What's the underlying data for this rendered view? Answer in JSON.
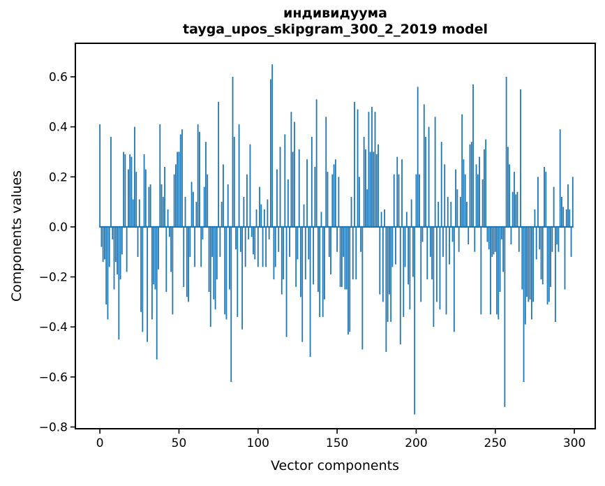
{
  "figure": {
    "title_line1": "индивидуума",
    "title_line2": "tayga_upos_skipgram_300_2_2019 model"
  },
  "chart_data": {
    "type": "bar",
    "title": "индивидуума tayga_upos_skipgram_300_2_2019 model",
    "xlabel": "Vector components",
    "ylabel": "Components values",
    "x_start": 0,
    "x_end": 299,
    "bar_color": "#1f77b4",
    "axis_color": "#000000",
    "background_color": "#ffffff",
    "grid": false,
    "legend": null,
    "xticks": [
      0,
      50,
      100,
      150,
      200,
      250,
      300
    ],
    "yticks": [
      0.6,
      0.4,
      0.2,
      0.0,
      -0.2,
      -0.4,
      -0.6,
      -0.8
    ],
    "xlim": [
      -15.5,
      313.2
    ],
    "ylim": [
      -0.807,
      0.734
    ],
    "values": [
      0.41,
      -0.08,
      -0.14,
      -0.13,
      -0.31,
      -0.37,
      -0.16,
      0.36,
      -0.05,
      -0.25,
      -0.14,
      -0.19,
      -0.45,
      -0.21,
      -0.11,
      0.3,
      0.29,
      -0.18,
      0.23,
      0.29,
      0.28,
      0.11,
      0.4,
      0.22,
      -0.12,
      0.11,
      -0.34,
      -0.42,
      0.29,
      0.23,
      -0.46,
      0.16,
      0.17,
      -0.37,
      -0.23,
      -0.25,
      -0.53,
      -0.17,
      0.41,
      0.17,
      0.12,
      0.24,
      -0.26,
      0.07,
      -0.04,
      -0.18,
      -0.35,
      0.21,
      0.25,
      0.3,
      0.3,
      0.37,
      0.39,
      -0.24,
      0.12,
      -0.28,
      -0.3,
      -0.12,
      0.18,
      0.14,
      -0.16,
      0.1,
      0.41,
      0.38,
      -0.16,
      -0.05,
      0.16,
      0.34,
      0.21,
      -0.26,
      -0.4,
      -0.12,
      -0.29,
      -0.33,
      -0.21,
      0.5,
      -0.12,
      0.1,
      0.25,
      -0.35,
      -0.37,
      0.17,
      -0.25,
      -0.62,
      0.6,
      0.36,
      -0.09,
      -0.36,
      0.41,
      -0.1,
      -0.41,
      0.12,
      -0.16,
      0.21,
      -0.05,
      0.33,
      -0.04,
      -0.11,
      -0.13,
      0.07,
      -0.16,
      0.16,
      0.09,
      -0.16,
      0.07,
      -0.16,
      0.11,
      -0.05,
      0.59,
      0.65,
      -0.21,
      -0.16,
      0.23,
      -0.1,
      0.32,
      -0.27,
      -0.21,
      0.37,
      -0.44,
      0.19,
      -0.12,
      0.46,
      0.3,
      0.42,
      -0.24,
      -0.13,
      0.31,
      -0.28,
      -0.46,
      0.09,
      -0.21,
      0.27,
      -0.13,
      -0.52,
      0.36,
      -0.23,
      0.24,
      0.51,
      -0.26,
      -0.36,
      0.06,
      -0.36,
      -0.29,
      0.44,
      0.22,
      -0.12,
      -0.19,
      0.21,
      0.25,
      0.27,
      -0.1,
      0.2,
      -0.24,
      -0.24,
      -0.12,
      -0.25,
      -0.25,
      -0.43,
      -0.42,
      0.12,
      -0.21,
      0.5,
      -0.21,
      0.47,
      0.2,
      -0.1,
      -0.49,
      0.36,
      0.31,
      0.15,
      0.46,
      0.3,
      0.48,
      0.3,
      0.46,
      0.29,
      0.33,
      -0.27,
      0.06,
      -0.3,
      0.07,
      -0.5,
      -0.38,
      -0.27,
      -0.38,
      -0.16,
      0.21,
      -0.15,
      0.28,
      0.21,
      -0.47,
      0.27,
      -0.36,
      -0.16,
      0.06,
      -0.23,
      -0.33,
      0.11,
      -0.2,
      -0.75,
      0.21,
      0.56,
      0.21,
      -0.3,
      -0.06,
      0.49,
      0.36,
      -0.21,
      0.4,
      -0.12,
      -0.21,
      -0.4,
      0.44,
      -0.3,
      0.1,
      -0.33,
      0.34,
      -0.12,
      0.25,
      -0.35,
      0.12,
      -0.15,
      0.1,
      -0.06,
      -0.42,
      0.23,
      0.15,
      -0.1,
      0.12,
      0.45,
      0.27,
      0.21,
      0.1,
      -0.07,
      0.33,
      0.34,
      0.57,
      -0.1,
      0.25,
      0.21,
      0.28,
      -0.35,
      0.19,
      0.31,
      0.35,
      -0.06,
      -0.09,
      -0.35,
      -0.12,
      -0.11,
      -0.1,
      -0.35,
      -0.37,
      -0.26,
      -0.05,
      -0.18,
      -0.72,
      0.6,
      0.32,
      0.25,
      -0.07,
      0.14,
      0.22,
      0.13,
      0.14,
      -0.1,
      0.55,
      -0.25,
      -0.62,
      -0.39,
      -0.28,
      -0.3,
      -0.29,
      -0.37,
      -0.3,
      0.07,
      -0.13,
      0.2,
      -0.09,
      -0.21,
      -0.23,
      0.24,
      0.22,
      -0.31,
      -0.3,
      -0.24,
      -0.1,
      0.16,
      -0.38,
      -0.07,
      -0.1,
      0.39,
      0.12,
      0.08,
      -0.25,
      0.07,
      0.17,
      0.07,
      -0.12,
      0.2
    ]
  }
}
